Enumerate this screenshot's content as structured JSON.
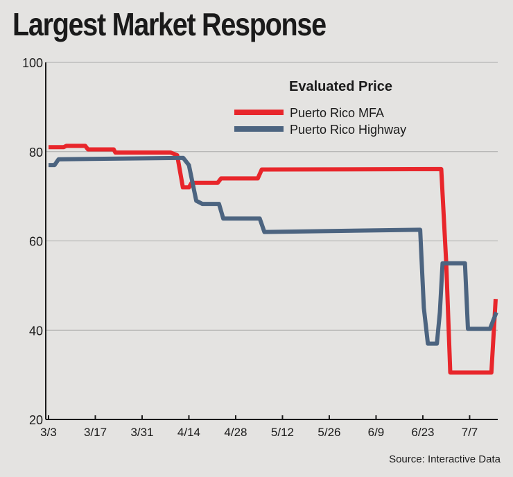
{
  "chart_data": {
    "type": "line",
    "title": "Largest Market Response",
    "legend_title": "Evaluated Price",
    "ylim": [
      20,
      100
    ],
    "yticks": [
      20,
      40,
      60,
      80,
      100
    ],
    "ytick_labels": [
      "20",
      "40",
      "60",
      "80",
      "100"
    ],
    "xlim": [
      0,
      134
    ],
    "xticks": [
      0,
      14,
      28,
      42,
      56,
      70,
      84,
      98,
      112,
      126
    ],
    "xtick_labels": [
      "3/3",
      "3/17",
      "3/31",
      "4/14",
      "4/28",
      "5/12",
      "5/26",
      "6/9",
      "6/23",
      "7/7"
    ],
    "grid": true,
    "legend_position": "top-right",
    "source": "Source: Interactive Data",
    "series": [
      {
        "name": "Puerto Rico MFA",
        "color": "#e8262b",
        "points": [
          [
            0,
            81
          ],
          [
            4.5,
            81
          ],
          [
            5.3,
            81.3
          ],
          [
            11,
            81.3
          ],
          [
            11.8,
            80.5
          ],
          [
            19.5,
            80.5
          ],
          [
            20,
            79.8
          ],
          [
            36.5,
            79.8
          ],
          [
            38.5,
            79.2
          ],
          [
            40.2,
            72
          ],
          [
            42,
            72
          ],
          [
            42.8,
            73
          ],
          [
            50.6,
            73
          ],
          [
            51.6,
            74
          ],
          [
            62.6,
            74
          ],
          [
            63.8,
            76
          ],
          [
            117.5,
            76.1
          ],
          [
            119,
            55
          ],
          [
            120.2,
            30.5
          ],
          [
            132.5,
            30.5
          ],
          [
            133.8,
            47
          ]
        ]
      },
      {
        "name": "Puerto Rico Highway",
        "color": "#4c6480",
        "points": [
          [
            0,
            77
          ],
          [
            1.8,
            77
          ],
          [
            3,
            78.3
          ],
          [
            40.3,
            78.6
          ],
          [
            42,
            77
          ],
          [
            44.2,
            69
          ],
          [
            46,
            68.3
          ],
          [
            51,
            68.3
          ],
          [
            52.3,
            65
          ],
          [
            63.2,
            65
          ],
          [
            64.6,
            62
          ],
          [
            111.2,
            62.5
          ],
          [
            112.3,
            45
          ],
          [
            113.5,
            37
          ],
          [
            116.2,
            37
          ],
          [
            117.1,
            44
          ],
          [
            117.9,
            55
          ],
          [
            124.6,
            55
          ],
          [
            125.5,
            40.3
          ],
          [
            132.1,
            40.3
          ],
          [
            134,
            44
          ]
        ]
      }
    ]
  }
}
